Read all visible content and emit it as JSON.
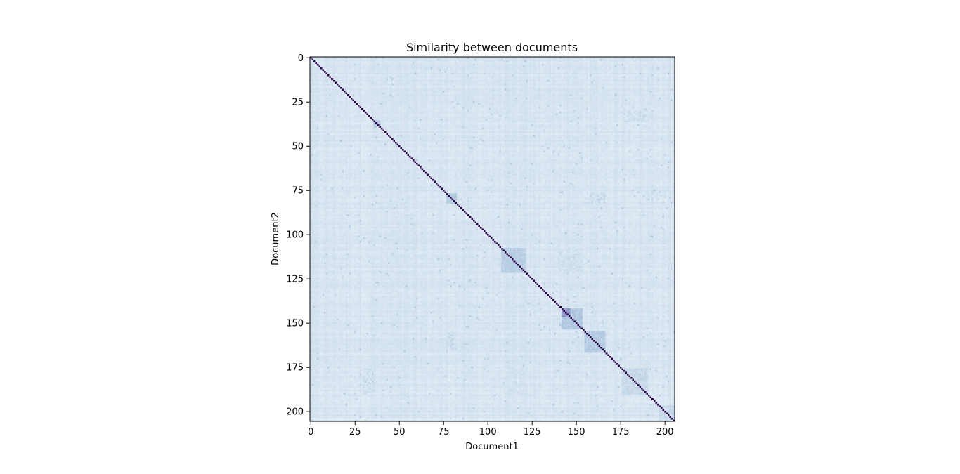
{
  "chart_data": {
    "type": "heatmap",
    "title": "Similarity between documents",
    "xlabel": "Document1",
    "ylabel": "Document2",
    "n_documents": 206,
    "xlim": [
      0,
      205
    ],
    "ylim": [
      205,
      0
    ],
    "x_ticks": [
      0,
      25,
      50,
      75,
      100,
      125,
      150,
      175,
      200
    ],
    "y_ticks": [
      0,
      25,
      50,
      75,
      100,
      125,
      150,
      175,
      200
    ],
    "x_tick_labels": [
      "0",
      "25",
      "50",
      "75",
      "100",
      "125",
      "150",
      "175",
      "200"
    ],
    "y_tick_labels": [
      "0",
      "25",
      "50",
      "75",
      "100",
      "125",
      "150",
      "175",
      "200"
    ],
    "colormap": "BuPu",
    "colors": {
      "low": "#e6eff7",
      "mid": "#9ebcda",
      "high": "#2d004b",
      "frame": "#000000"
    },
    "value_range": [
      0,
      1
    ],
    "diagonal_value": 1.0,
    "background_similarity": 0.06,
    "clusters": [
      {
        "start": 36,
        "end": 39,
        "value": 0.28
      },
      {
        "start": 77,
        "end": 82,
        "value": 0.26
      },
      {
        "start": 108,
        "end": 121,
        "value": 0.24
      },
      {
        "start": 142,
        "end": 146,
        "value": 0.55
      },
      {
        "start": 142,
        "end": 153,
        "value": 0.28
      },
      {
        "start": 155,
        "end": 166,
        "value": 0.26
      },
      {
        "start": 176,
        "end": 190,
        "value": 0.18
      },
      {
        "start": 197,
        "end": 205,
        "value": 0.18
      }
    ],
    "off_diagonal_blocks": [
      {
        "rows": [
          108,
          121
        ],
        "cols": [
          140,
          153
        ],
        "value": 0.14
      },
      {
        "rows": [
          155,
          166
        ],
        "cols": [
          77,
          82
        ],
        "value": 0.17
      },
      {
        "rows": [
          77,
          82
        ],
        "cols": [
          155,
          166
        ],
        "value": 0.17
      },
      {
        "rows": [
          30,
          36
        ],
        "cols": [
          176,
          190
        ],
        "value": 0.15
      },
      {
        "rows": [
          176,
          190
        ],
        "cols": [
          30,
          36
        ],
        "value": 0.15
      },
      {
        "rows": [
          75,
          82
        ],
        "cols": [
          190,
          200
        ],
        "value": 0.14
      },
      {
        "rows": [
          176,
          190
        ],
        "cols": [
          112,
          120
        ],
        "value": 0.13
      }
    ],
    "grid": false,
    "legend": "none",
    "colorbar": false
  }
}
